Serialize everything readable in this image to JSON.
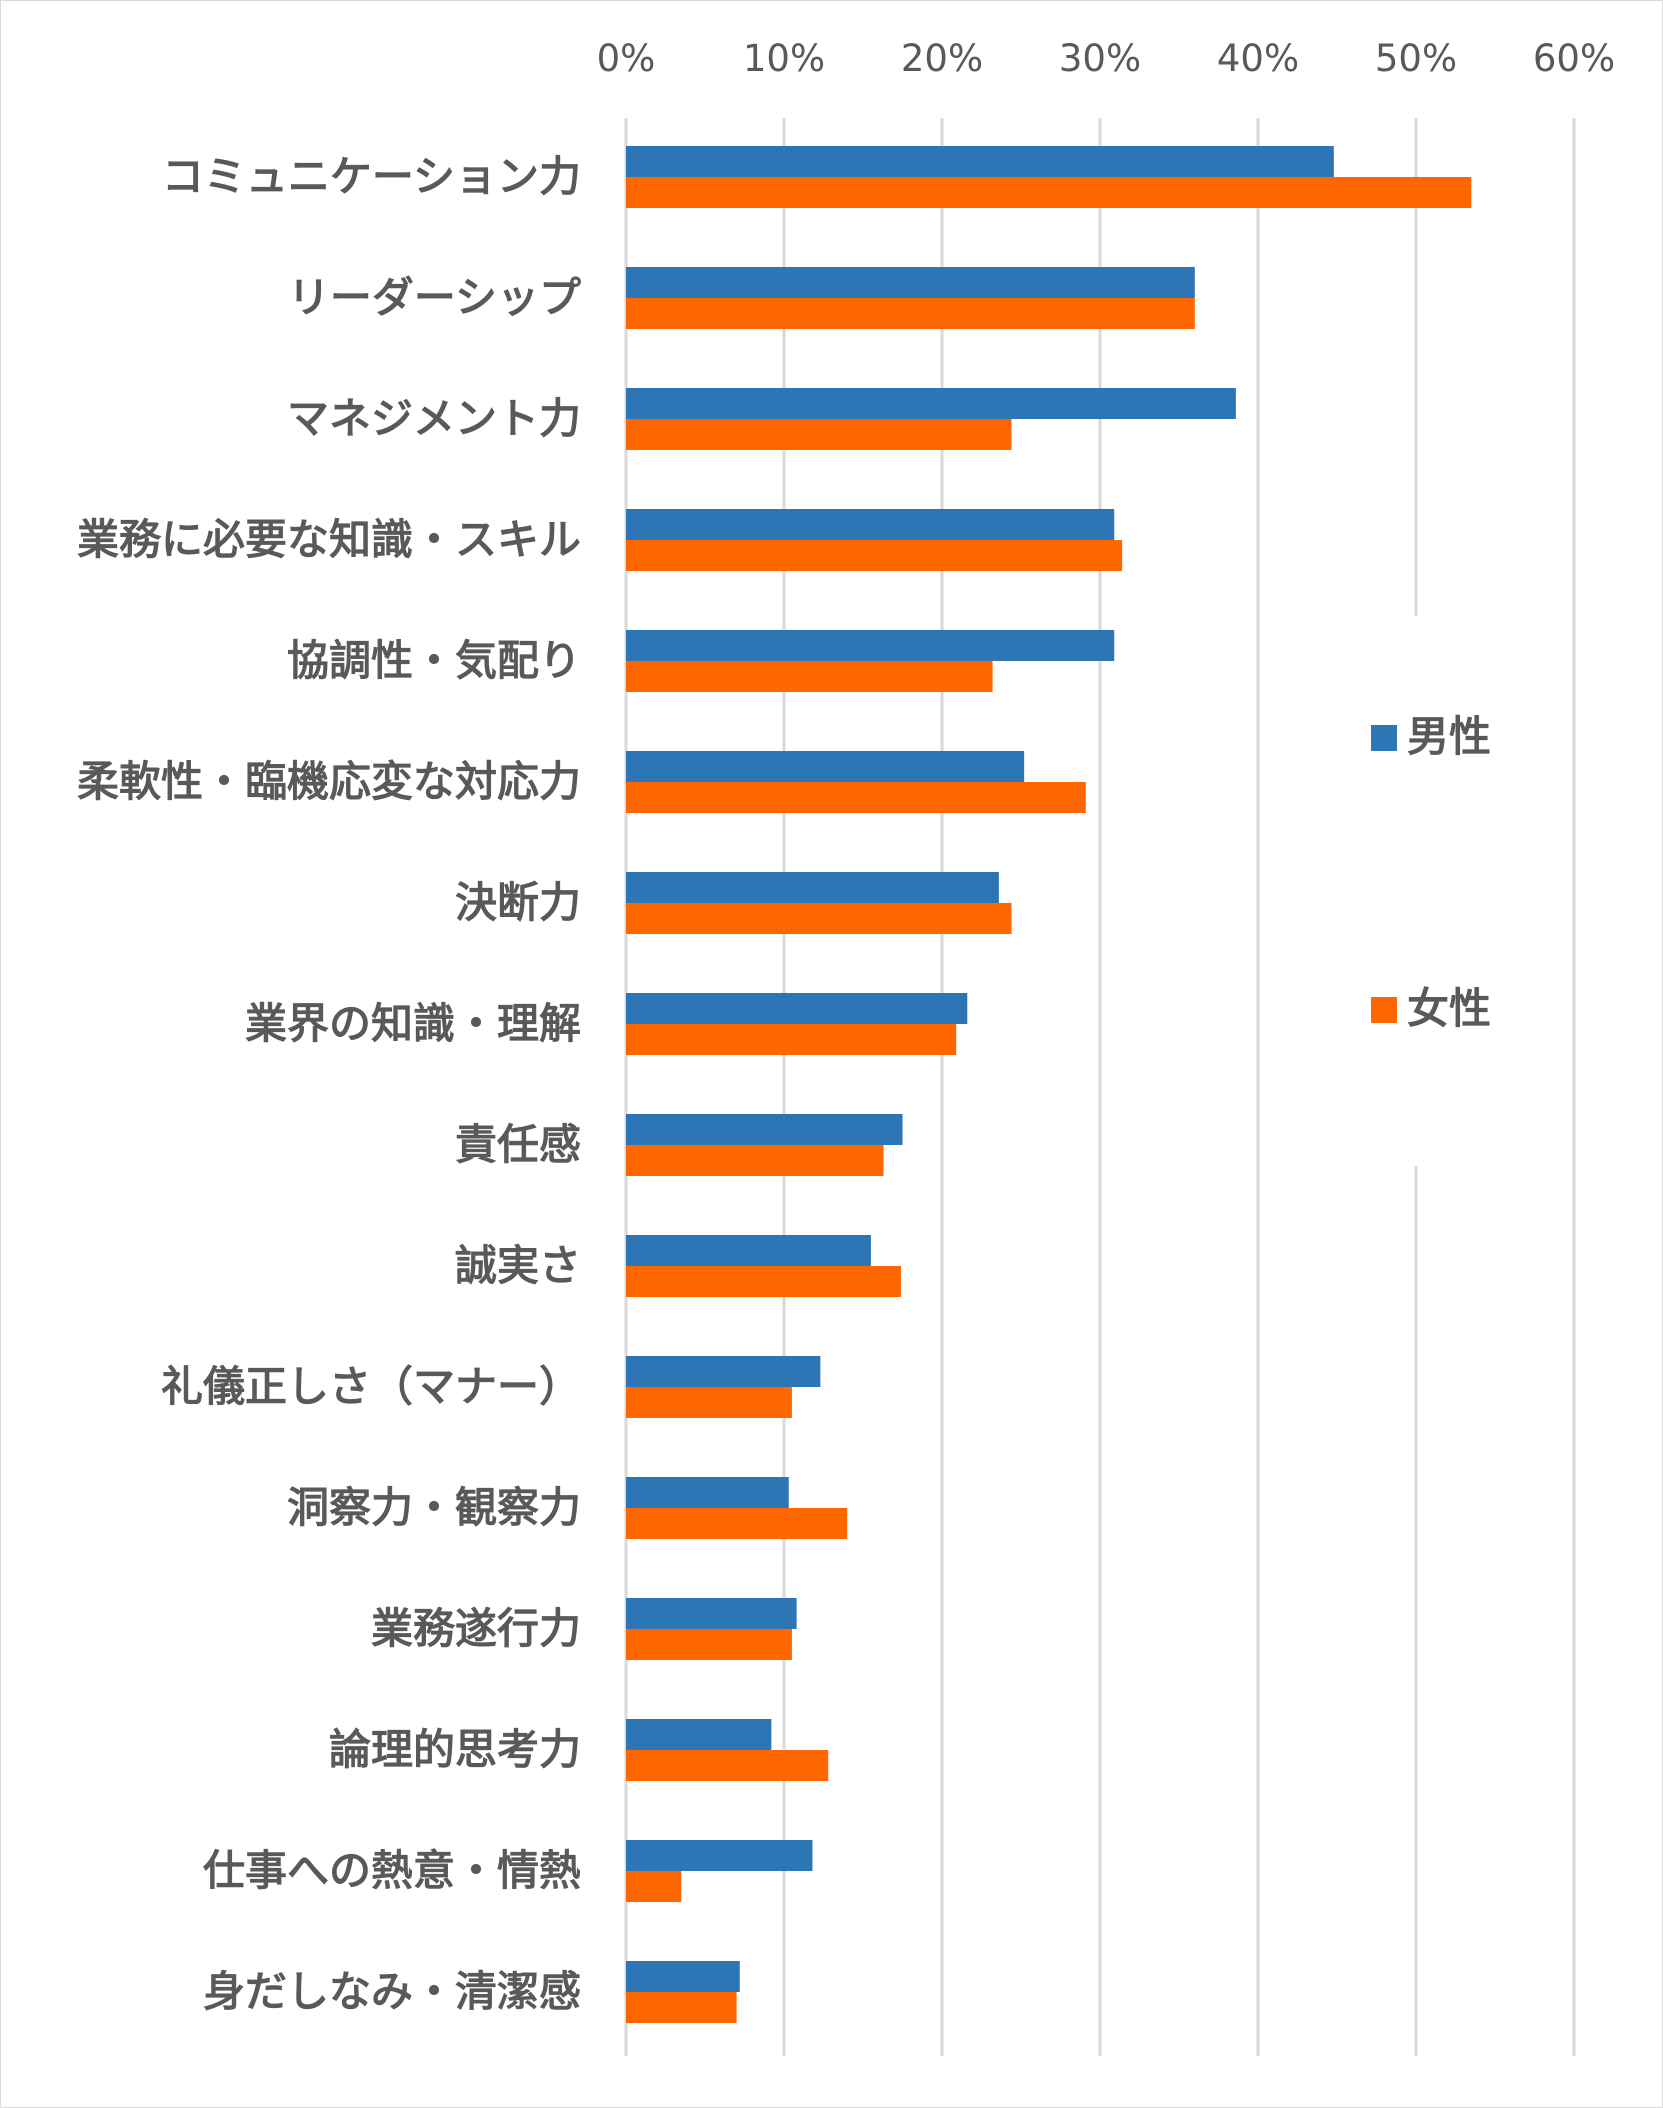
{
  "chart_data": {
    "type": "bar",
    "orientation": "horizontal",
    "xlim": [
      0,
      60
    ],
    "x_ticks": [
      "0%",
      "10%",
      "20%",
      "30%",
      "40%",
      "50%",
      "60%"
    ],
    "grid": true,
    "legend_position": "right",
    "categories": [
      "コミュニケーション力",
      "リーダーシップ",
      "マネジメント力",
      "業務に必要な知識・スキル",
      "協調性・気配り",
      "柔軟性・臨機応変な対応力",
      "決断力",
      "業界の知識・理解",
      "責任感",
      "誠実さ",
      "礼儀正しさ（マナー）",
      "洞察力・観察力",
      "業務遂行力",
      "論理的思考力",
      "仕事への熱意・情熱",
      "身だしなみ・清潔感"
    ],
    "series": [
      {
        "name": "男性",
        "color": "#2e75b6",
        "values": [
          44.8,
          36.0,
          38.6,
          30.9,
          30.9,
          25.2,
          23.6,
          21.6,
          17.5,
          15.5,
          12.3,
          10.3,
          10.8,
          9.2,
          11.8,
          7.2
        ]
      },
      {
        "name": "女性",
        "color": "#ff6600",
        "values": [
          53.5,
          36.0,
          24.4,
          31.4,
          23.2,
          29.1,
          24.4,
          20.9,
          16.3,
          17.4,
          10.5,
          14.0,
          10.5,
          12.8,
          3.5,
          7.0
        ]
      }
    ]
  }
}
